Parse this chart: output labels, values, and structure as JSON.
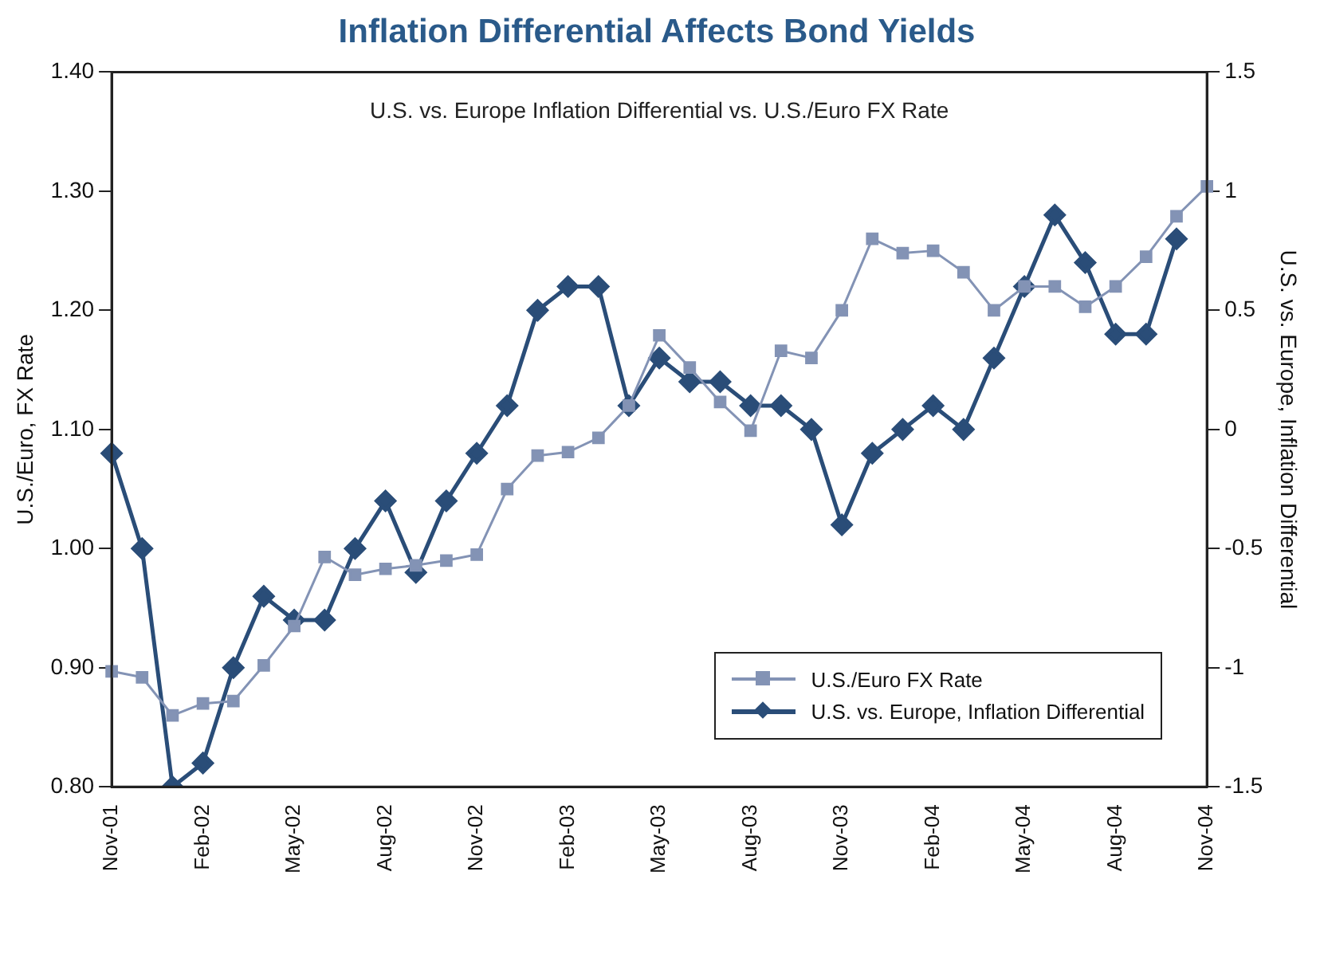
{
  "chart_data": {
    "type": "line",
    "title": "Inflation Differential Affects Bond Yields",
    "subtitle": "U.S. vs. Europe Inflation Differential vs. U.S./Euro FX Rate",
    "ylabel": "U.S./Euro, FX Rate",
    "y2label": "U.S. vs. Europe, Inflation Differential",
    "categories": [
      "Nov-01",
      null,
      null,
      "Feb-02",
      null,
      null,
      "May-02",
      null,
      null,
      "Aug-02",
      null,
      null,
      "Nov-02",
      null,
      null,
      "Feb-03",
      null,
      null,
      "May-03",
      null,
      null,
      "Aug-03",
      null,
      null,
      "Nov-03",
      null,
      null,
      "Feb-04",
      null,
      null,
      "May-04",
      null,
      null,
      "Aug-04",
      null,
      null,
      "Nov-04"
    ],
    "series": [
      {
        "name": "U.S./Euro FX Rate",
        "color": "#8393b5",
        "marker": "square",
        "values": [
          0.897,
          0.892,
          0.86,
          0.87,
          0.872,
          0.902,
          0.935,
          0.993,
          0.978,
          0.983,
          0.986,
          0.99,
          0.995,
          1.05,
          1.078,
          1.081,
          1.093,
          1.12,
          1.179,
          1.152,
          1.123,
          1.099,
          1.166,
          1.16,
          1.2,
          1.26,
          1.248,
          1.25,
          1.232,
          1.2,
          1.22,
          1.22,
          1.203,
          1.22,
          1.245,
          1.279,
          1.304
        ]
      },
      {
        "name": "U.S. vs. Europe, Inflation Differential",
        "color": "#2a4d78",
        "marker": "diamond",
        "axis": "y2",
        "values": [
          -0.1,
          -0.5,
          -1.5,
          -1.4,
          -1.0,
          -0.7,
          -0.8,
          -0.8,
          -0.5,
          -0.3,
          -0.6,
          -0.3,
          -0.1,
          0.1,
          0.5,
          0.6,
          0.6,
          0.1,
          0.3,
          0.2,
          0.2,
          0.1,
          0.1,
          0.0,
          -0.4,
          -0.1,
          0.0,
          0.1,
          0.0,
          0.3,
          0.6,
          0.9,
          0.7,
          0.4,
          0.4,
          0.8,
          null
        ]
      }
    ],
    "ylim": [
      0.8,
      1.4
    ],
    "yticks": [
      {
        "value": 0.8,
        "label": "0.80"
      },
      {
        "value": 0.9,
        "label": "0.90"
      },
      {
        "value": 1.0,
        "label": "1.00"
      },
      {
        "value": 1.1,
        "label": "1.10"
      },
      {
        "value": 1.2,
        "label": "1.20"
      },
      {
        "value": 1.3,
        "label": "1.30"
      },
      {
        "value": 1.4,
        "label": "1.40"
      }
    ],
    "y2lim": [
      -1.5,
      1.5
    ],
    "y2ticks": [
      -1.5,
      -1,
      -0.5,
      0,
      0.5,
      1,
      1.5
    ],
    "grid": false,
    "legend": "bottom right",
    "line_style": "solid"
  }
}
